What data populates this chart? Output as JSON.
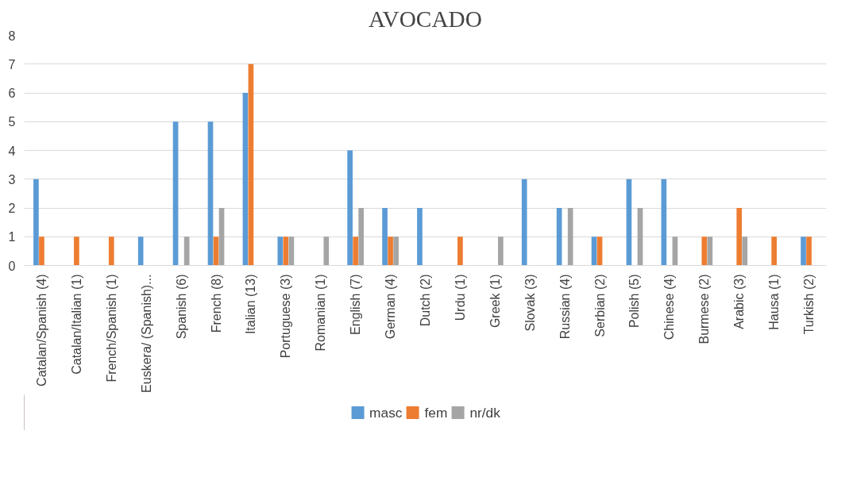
{
  "chart_data": {
    "type": "bar",
    "title": "AVOCADO",
    "categories": [
      "Catalan/Spanish (4)",
      "Catalan/Italian (1)",
      "French/Spanish (1)",
      "Euskera/ (Spanish)...",
      "Spanish (6)",
      "French (8)",
      "Italian (13)",
      "Portuguese (3)",
      "Romanian (1)",
      "English (7)",
      "German (4)",
      "Dutch (2)",
      "Urdu (1)",
      "Greek (1)",
      "Slovak (3)",
      "Russian (4)",
      "Serbian (2)",
      "Polish (5)",
      "Chinese (4)",
      "Burmese (2)",
      "Arabic (3)",
      "Hausa (1)",
      "Turkish (2)"
    ],
    "series": [
      {
        "name": "masc",
        "color": "#5b9bd5",
        "values": [
          3,
          0,
          0,
          1,
          5,
          5,
          6,
          1,
          0,
          4,
          2,
          2,
          0,
          0,
          3,
          2,
          1,
          3,
          3,
          0,
          0,
          0,
          1
        ]
      },
      {
        "name": "fem",
        "color": "#ed7d31",
        "values": [
          1,
          1,
          1,
          0,
          0,
          1,
          7,
          1,
          0,
          1,
          1,
          0,
          1,
          0,
          0,
          0,
          1,
          0,
          0,
          1,
          2,
          1,
          1
        ]
      },
      {
        "name": "nr/dk",
        "color": "#a5a5a5",
        "values": [
          0,
          0,
          0,
          0,
          1,
          2,
          0,
          1,
          1,
          2,
          1,
          0,
          0,
          1,
          0,
          2,
          0,
          2,
          1,
          1,
          1,
          0,
          0
        ]
      }
    ],
    "ylim": [
      0,
      8
    ],
    "yticks": [
      0,
      1,
      2,
      3,
      4,
      5,
      6,
      7,
      8
    ],
    "grid": "y",
    "legend": "bottom"
  }
}
